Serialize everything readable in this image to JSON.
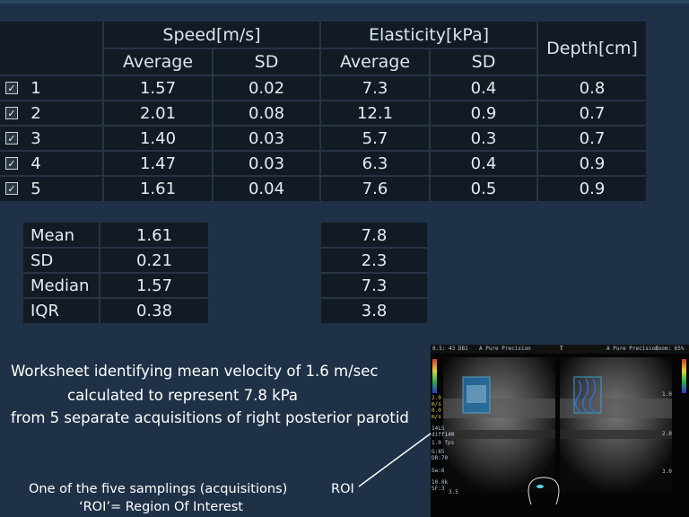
{
  "table": {
    "group_headers": {
      "speed": "Speed[m/s]",
      "elasticity": "Elasticity[kPa]",
      "depth": "Depth[cm]"
    },
    "sub_headers": {
      "speed_avg": "Average",
      "speed_sd": "SD",
      "el_avg": "Average",
      "el_sd": "SD"
    },
    "check_mark": "✓",
    "rows": [
      {
        "index": "1",
        "speed_avg": "1.57",
        "speed_sd": "0.02",
        "el_avg": "7.3",
        "el_sd": "0.4",
        "depth": "0.8"
      },
      {
        "index": "2",
        "speed_avg": "2.01",
        "speed_sd": "0.08",
        "el_avg": "12.1",
        "el_sd": "0.9",
        "depth": "0.7"
      },
      {
        "index": "3",
        "speed_avg": "1.40",
        "speed_sd": "0.03",
        "el_avg": "5.7",
        "el_sd": "0.3",
        "depth": "0.7"
      },
      {
        "index": "4",
        "speed_avg": "1.47",
        "speed_sd": "0.03",
        "el_avg": "6.3",
        "el_sd": "0.4",
        "depth": "0.9"
      },
      {
        "index": "5",
        "speed_avg": "1.61",
        "speed_sd": "0.04",
        "el_avg": "7.6",
        "el_sd": "0.5",
        "depth": "0.9"
      }
    ]
  },
  "stats": {
    "labels": [
      "Mean",
      "SD",
      "Median",
      "IQR"
    ],
    "speed": [
      "1.61",
      "0.21",
      "1.57",
      "0.38"
    ],
    "elasticity": [
      "7.8",
      "2.3",
      "7.3",
      "3.8"
    ]
  },
  "caption": {
    "line1": "Worksheet identifying mean velocity of 1.6 m/sec",
    "line2": "calculated to represent 7.8  kPa",
    "line3": "from 5 separate acquisitions of right posterior parotid"
  },
  "bottom_caption": {
    "line1": "One of the five samplings (acquisitions)",
    "line2": "‘ROI’= Region Of Interest",
    "roi_label": "ROI"
  },
  "ultrasound": {
    "header_left": "8.5: 43 DB1",
    "header_mid1": "A Pure Precision",
    "header_mid2": "A Pure Precision",
    "header_right": "Zoom: 65%",
    "marker": "T",
    "left_scale": [
      "2.0",
      "m/s",
      "0.0",
      "m/s"
    ],
    "probe_info": [
      "14L5",
      "diff14M",
      "1.0 fps",
      "G:85",
      "DR:70",
      "Sw:6",
      "10.0k",
      "SF:3"
    ],
    "depth_marks": [
      "1.0",
      "2.0",
      "3.0",
      "3.5"
    ]
  },
  "colors": {
    "background": "#1f3146",
    "table_bg": "#121a24",
    "roi": "#2aa8c8"
  }
}
